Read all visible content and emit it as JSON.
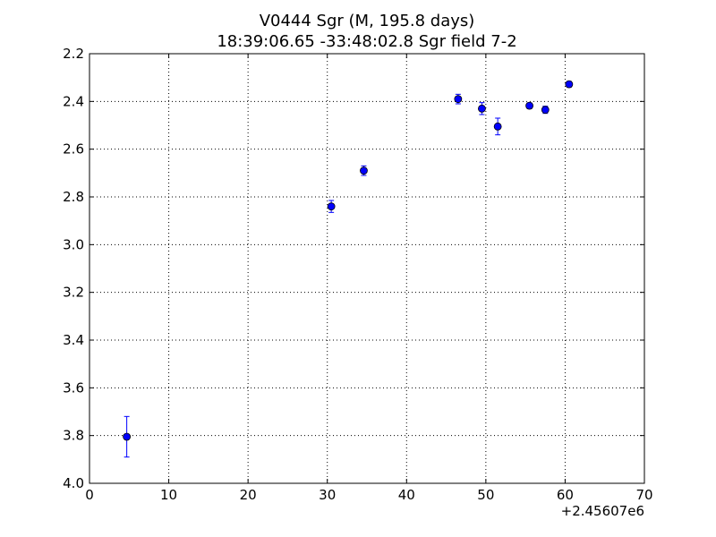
{
  "chart_data": {
    "type": "scatter",
    "title": "V0444 Sgr (M, 195.8 days)",
    "subtitle": "18:39:06.65 -33:48:02.8 Sgr field 7-2",
    "xlabel": "",
    "ylabel": "",
    "x_offset_label": "+2.45607e6",
    "xlim": [
      0,
      70
    ],
    "ylim": [
      4.0,
      2.2
    ],
    "y_inverted": true,
    "grid": true,
    "x_ticks": [
      0,
      10,
      20,
      30,
      40,
      50,
      60,
      70
    ],
    "y_ticks": [
      2.2,
      2.4,
      2.6,
      2.8,
      3.0,
      3.2,
      3.4,
      3.6,
      3.8,
      4.0
    ],
    "x_tick_labels": [
      "0",
      "10",
      "20",
      "30",
      "40",
      "50",
      "60",
      "70"
    ],
    "y_tick_labels": [
      "2.2",
      "2.4",
      "2.6",
      "2.8",
      "3.0",
      "3.2",
      "3.4",
      "3.6",
      "3.8",
      "4.0"
    ],
    "marker_color": "#0000ff",
    "points": [
      {
        "x": 4.7,
        "y": 3.805,
        "err": 0.085
      },
      {
        "x": 30.5,
        "y": 2.84,
        "err": 0.025
      },
      {
        "x": 34.6,
        "y": 2.69,
        "err": 0.02
      },
      {
        "x": 46.5,
        "y": 2.39,
        "err": 0.02
      },
      {
        "x": 49.5,
        "y": 2.43,
        "err": 0.025
      },
      {
        "x": 51.5,
        "y": 2.505,
        "err": 0.035
      },
      {
        "x": 55.5,
        "y": 2.418,
        "err": 0.012
      },
      {
        "x": 57.5,
        "y": 2.435,
        "err": 0.015
      },
      {
        "x": 60.5,
        "y": 2.328,
        "err": 0.012
      }
    ]
  }
}
